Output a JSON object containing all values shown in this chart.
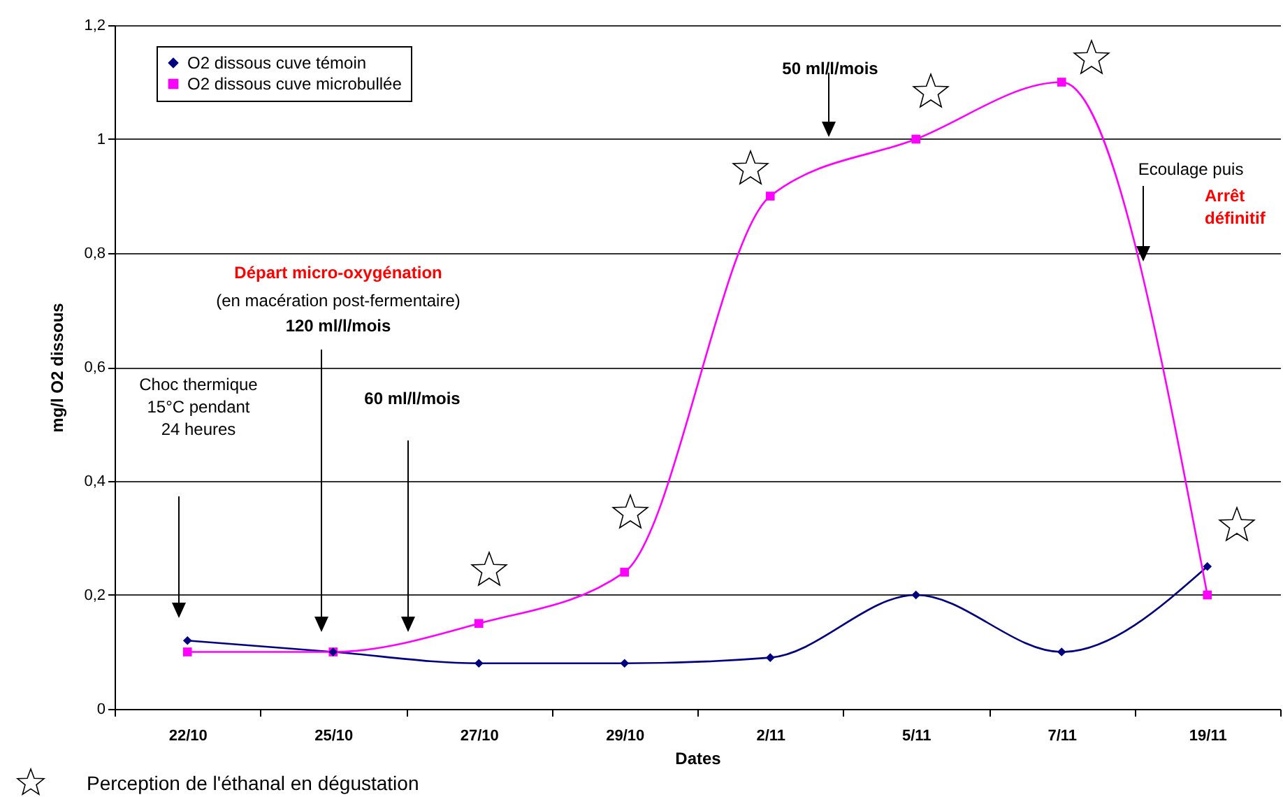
{
  "chart_data": {
    "type": "line",
    "xlabel": "Dates",
    "ylabel": "mg/l O2 dissous",
    "categories": [
      "22/10",
      "25/10",
      "27/10",
      "29/10",
      "2/11",
      "5/11",
      "7/11",
      "19/11"
    ],
    "series": [
      {
        "name": "O2 dissous cuve témoin",
        "color": "#000080",
        "marker": "diamond",
        "values": [
          0.12,
          0.1,
          0.08,
          0.08,
          0.09,
          0.2,
          0.1,
          0.25
        ]
      },
      {
        "name": "O2 dissous cuve microbullée",
        "color": "#ff00ff",
        "marker": "square",
        "values": [
          0.1,
          0.1,
          0.15,
          0.24,
          0.9,
          1.0,
          1.1,
          0.2
        ]
      }
    ],
    "ylim": [
      0,
      1.2
    ],
    "yticks": [
      {
        "value": 0,
        "label": "0"
      },
      {
        "value": 0.2,
        "label": "0,2"
      },
      {
        "value": 0.4,
        "label": "0,4"
      },
      {
        "value": 0.6,
        "label": "0,6"
      },
      {
        "value": 0.8,
        "label": "0,8"
      },
      {
        "value": 1,
        "label": "1"
      },
      {
        "value": 1.2,
        "label": "1,2"
      }
    ],
    "grid": "y",
    "legend": "top left",
    "line_style": "solid",
    "annotations": [
      "Choc thermique\n15°C pendant\n24 heures",
      "Départ micro-oxygénation",
      "(en macération post-fermentaire)",
      "120 ml/l/mois",
      "60 ml/l/mois",
      "50 ml/l/mois",
      "Ecoulage puis",
      "Arrêt\ndéfinitif",
      "Perception de l'éthanal en dégustation"
    ]
  }
}
